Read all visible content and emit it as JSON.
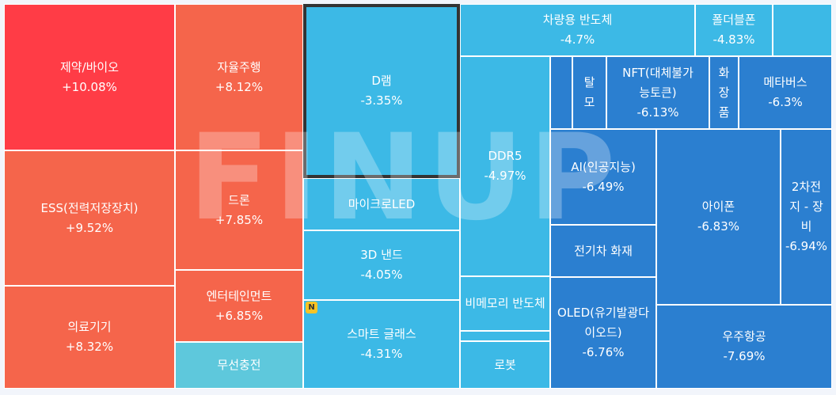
{
  "chart_data": {
    "type": "treemap",
    "title": "",
    "watermark": "FINUP",
    "badge": "N",
    "tiles": [
      {
        "key": "pharma-bio",
        "name": "제약/바이오",
        "change_label": "+10.08%",
        "change": 10.08,
        "color": "#ff3c46"
      },
      {
        "key": "self-driving",
        "name": "자율주행",
        "change_label": "+8.12%",
        "change": 8.12,
        "color": "#f5654b"
      },
      {
        "key": "ess",
        "name": "ESS(전력저장장치)",
        "change_label": "+9.52%",
        "change": 9.52,
        "color": "#f5654b"
      },
      {
        "key": "drone",
        "name": "드론",
        "change_label": "+7.85%",
        "change": 7.85,
        "color": "#f5654b"
      },
      {
        "key": "medical-devices",
        "name": "의료기기",
        "change_label": "+8.32%",
        "change": 8.32,
        "color": "#f5654b"
      },
      {
        "key": "entertainment",
        "name": "엔터테인먼트",
        "change_label": "+6.85%",
        "change": 6.85,
        "color": "#f5654b"
      },
      {
        "key": "wireless-charging",
        "name": "무선충전",
        "change_label": "",
        "change": null,
        "color": "#5ec8dc"
      },
      {
        "key": "dram",
        "name": "D램",
        "change_label": "-3.35%",
        "change": -3.35,
        "color": "#3cb9e6",
        "highlight": true
      },
      {
        "key": "micro-led",
        "name": "마이크로LED",
        "change_label": "",
        "change": null,
        "color": "#3cb9e6"
      },
      {
        "key": "3d-nand",
        "name": "3D 낸드",
        "change_label": "-4.05%",
        "change": -4.05,
        "color": "#3cb9e6"
      },
      {
        "key": "smart-glasses",
        "name": "스마트 글래스",
        "change_label": "-4.31%",
        "change": -4.31,
        "color": "#3cb9e6"
      },
      {
        "key": "auto-semis",
        "name": "차량용 반도체",
        "change_label": "-4.7%",
        "change": -4.7,
        "color": "#3cb9e6"
      },
      {
        "key": "foldable-phone",
        "name": "폴더블폰",
        "change_label": "-4.83%",
        "change": -4.83,
        "color": "#3cb9e6"
      },
      {
        "key": "unnamed-top-right",
        "name": "",
        "change_label": "",
        "change": null,
        "color": "#3cb9e6"
      },
      {
        "key": "ddr5",
        "name": "DDR5",
        "change_label": "-4.97%",
        "change": -4.97,
        "color": "#3cb9e6"
      },
      {
        "key": "unnamed-small-1",
        "name": "",
        "change_label": "",
        "change": null,
        "color": "#2b7fd0"
      },
      {
        "key": "hair-loss",
        "name": "탈모",
        "change_label": "",
        "change": null,
        "color": "#2b7fd0"
      },
      {
        "key": "nft",
        "name": "NFT(대체불가능토큰)",
        "change_label": "-6.13%",
        "change": -6.13,
        "color": "#2b7fd0"
      },
      {
        "key": "cosmetics",
        "name": "화장품",
        "change_label": "",
        "change": null,
        "color": "#2b7fd0"
      },
      {
        "key": "metaverse",
        "name": "메타버스",
        "change_label": "-6.3%",
        "change": -6.3,
        "color": "#2b7fd0"
      },
      {
        "key": "ai",
        "name": "AI(인공지능)",
        "change_label": "-6.49%",
        "change": -6.49,
        "color": "#2b7fd0"
      },
      {
        "key": "ev-fire",
        "name": "전기차 화재",
        "change_label": "",
        "change": null,
        "color": "#2b7fd0"
      },
      {
        "key": "iphone",
        "name": "아이폰",
        "change_label": "-6.83%",
        "change": -6.83,
        "color": "#2b7fd0"
      },
      {
        "key": "secondary-battery-equipment",
        "name": "2차전지 - 장비",
        "change_label": "-6.94%",
        "change": -6.94,
        "color": "#2b7fd0"
      },
      {
        "key": "non-memory-semis",
        "name": "비메모리 반도체",
        "change_label": "",
        "change": null,
        "color": "#3cb9e6"
      },
      {
        "key": "unnamed-thin",
        "name": "",
        "change_label": "",
        "change": null,
        "color": "#3cb9e6"
      },
      {
        "key": "robot",
        "name": "로봇",
        "change_label": "",
        "change": null,
        "color": "#3cb9e6"
      },
      {
        "key": "oled",
        "name": "OLED(유기발광다이오드)",
        "change_label": "-6.76%",
        "change": -6.76,
        "color": "#2b7fd0"
      },
      {
        "key": "aerospace",
        "name": "우주항공",
        "change_label": "-7.69%",
        "change": -7.69,
        "color": "#2b7fd0"
      }
    ]
  }
}
